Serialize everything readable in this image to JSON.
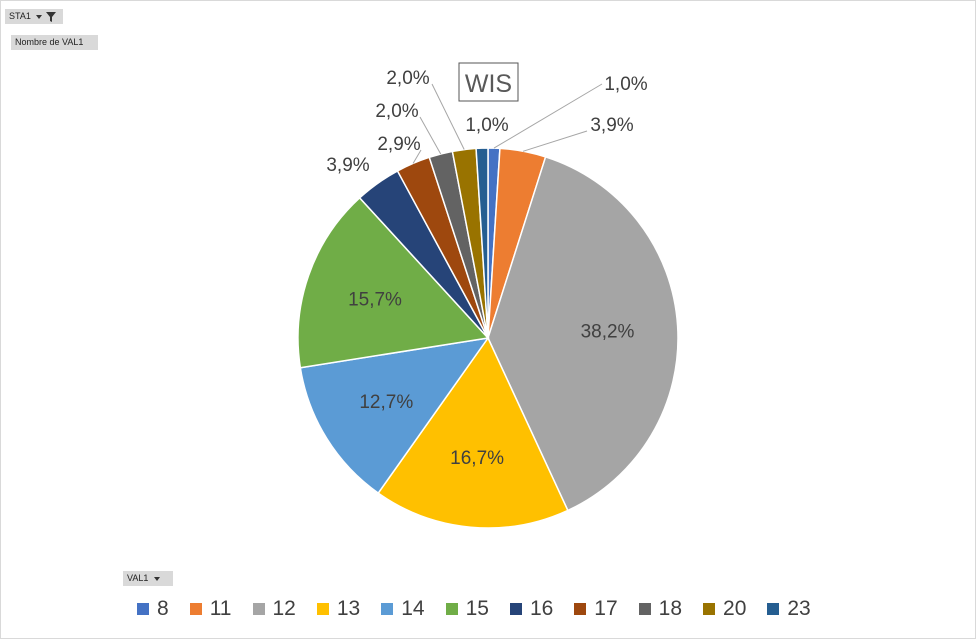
{
  "pivot": {
    "filter_field": "STA1",
    "values_field": "Nombre de VAL1",
    "axis_field": "VAL1"
  },
  "colors": {
    "8": "#4472C4",
    "11": "#ED7D31",
    "12": "#A5A5A5",
    "13": "#FFC000",
    "14": "#5B9BD5",
    "15": "#70AD47",
    "16": "#264478",
    "17": "#9E480E",
    "18": "#636363",
    "20": "#997300",
    "23": "#255E91"
  },
  "chart_data": {
    "type": "pie",
    "title": "WIS",
    "categories": [
      "8",
      "11",
      "12",
      "13",
      "14",
      "15",
      "16",
      "17",
      "18",
      "20",
      "23"
    ],
    "values": [
      1.0,
      3.9,
      38.2,
      16.7,
      12.7,
      15.7,
      3.9,
      2.9,
      2.0,
      2.0,
      1.0
    ],
    "data_labels": [
      "1,0%",
      "3,9%",
      "38,2%",
      "16,7%",
      "12,7%",
      "15,7%",
      "3,9%",
      "2,9%",
      "2,0%",
      "2,0%",
      "1,0%"
    ],
    "legend_position": "bottom"
  }
}
